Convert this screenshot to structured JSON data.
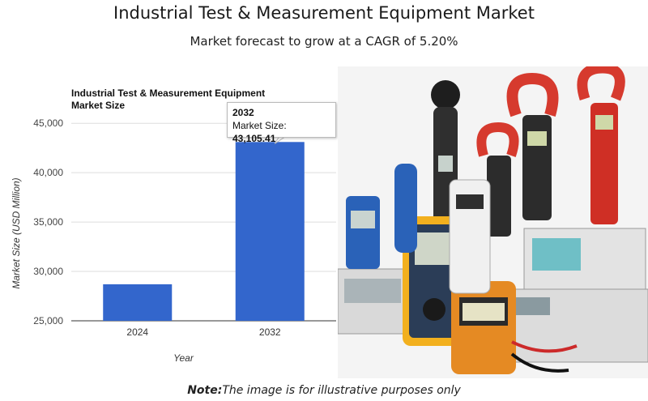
{
  "header": {
    "title": "Industrial Test & Measurement Equipment Market",
    "subtitle": "Market forecast to grow at a CAGR of 5.20%"
  },
  "chart_data": {
    "type": "bar",
    "title": "Industrial Test & Measurement Equipment Market Size",
    "xlabel": "Year",
    "ylabel": "Market Size (USD Million)",
    "categories": [
      "2024",
      "2032"
    ],
    "values": [
      28700,
      43105.41
    ],
    "ylim": [
      25000,
      46000
    ],
    "yticks": [
      25000,
      30000,
      35000,
      40000,
      45000
    ],
    "ytick_labels": [
      "25,000",
      "30,000",
      "35,000",
      "40,000",
      "45,000"
    ],
    "grid": true,
    "bar_color": "#3366cc",
    "tooltip": {
      "year": "2032",
      "label": "Market Size: ",
      "value": "43,105.41"
    }
  },
  "image": {
    "description_icon": "test-measurement-equipment-photo"
  },
  "note": {
    "prefix": "Note:",
    "text": "The image is for illustrative purposes only"
  }
}
